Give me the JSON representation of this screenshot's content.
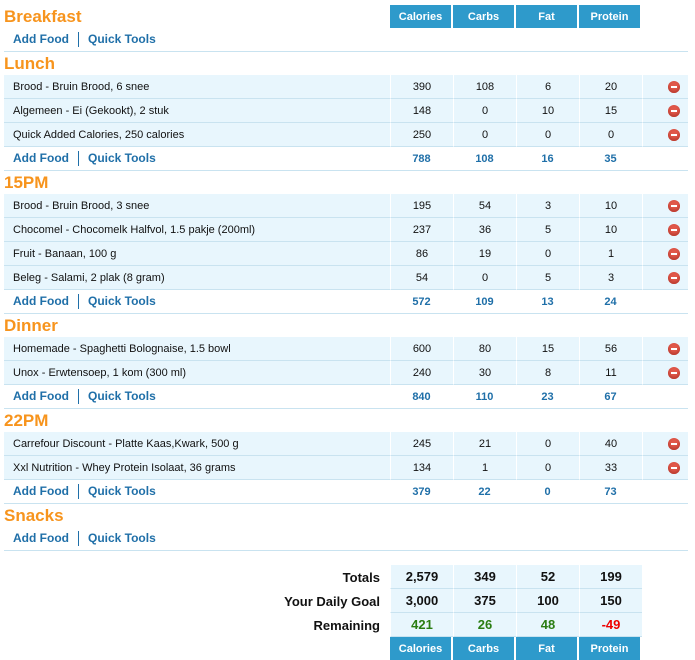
{
  "columns": [
    "Calories",
    "Carbs",
    "Fat",
    "Protein"
  ],
  "links": {
    "add_food": "Add Food",
    "quick_tools": "Quick Tools"
  },
  "meals": [
    {
      "name": "Breakfast",
      "foods": [],
      "totals": null
    },
    {
      "name": "Lunch",
      "foods": [
        {
          "name": "Brood - Bruin Brood, 6 snee",
          "values": [
            "390",
            "108",
            "6",
            "20"
          ]
        },
        {
          "name": "Algemeen - Ei (Gekookt), 2 stuk",
          "values": [
            "148",
            "0",
            "10",
            "15"
          ]
        },
        {
          "name": "Quick Added Calories, 250 calories",
          "values": [
            "250",
            "0",
            "0",
            "0"
          ]
        }
      ],
      "totals": [
        "788",
        "108",
        "16",
        "35"
      ]
    },
    {
      "name": "15PM",
      "foods": [
        {
          "name": "Brood - Bruin Brood, 3 snee",
          "values": [
            "195",
            "54",
            "3",
            "10"
          ]
        },
        {
          "name": "Chocomel - Chocomelk Halfvol, 1.5 pakje (200ml)",
          "values": [
            "237",
            "36",
            "5",
            "10"
          ]
        },
        {
          "name": "Fruit - Banaan, 100 g",
          "values": [
            "86",
            "19",
            "0",
            "1"
          ]
        },
        {
          "name": "Beleg - Salami, 2 plak (8 gram)",
          "values": [
            "54",
            "0",
            "5",
            "3"
          ]
        }
      ],
      "totals": [
        "572",
        "109",
        "13",
        "24"
      ]
    },
    {
      "name": "Dinner",
      "foods": [
        {
          "name": "Homemade - Spaghetti Bolognaise, 1.5 bowl",
          "values": [
            "600",
            "80",
            "15",
            "56"
          ]
        },
        {
          "name": "Unox - Erwtensoep, 1 kom (300 ml)",
          "values": [
            "240",
            "30",
            "8",
            "11"
          ]
        }
      ],
      "totals": [
        "840",
        "110",
        "23",
        "67"
      ]
    },
    {
      "name": "22PM",
      "foods": [
        {
          "name": "Carrefour Discount - Platte Kaas,Kwark, 500 g",
          "values": [
            "245",
            "21",
            "0",
            "40"
          ]
        },
        {
          "name": "Xxl Nutrition - Whey Protein Isolaat, 36 grams",
          "values": [
            "134",
            "1",
            "0",
            "33"
          ]
        }
      ],
      "totals": [
        "379",
        "22",
        "0",
        "73"
      ]
    },
    {
      "name": "Snacks",
      "foods": [],
      "totals": null
    }
  ],
  "summary": [
    {
      "label": "Totals",
      "values": [
        "2,579",
        "349",
        "52",
        "199"
      ]
    },
    {
      "label": "Your Daily Goal",
      "values": [
        "3,000",
        "375",
        "100",
        "150"
      ]
    },
    {
      "label": "Remaining",
      "values": [
        "421",
        "26",
        "48",
        "-49"
      ],
      "status": [
        "green",
        "green",
        "green",
        "red"
      ]
    }
  ],
  "colors": {
    "accent": "#2e9acb",
    "title": "#f7941d",
    "green": "#2a7d12",
    "red": "#ee0000"
  }
}
